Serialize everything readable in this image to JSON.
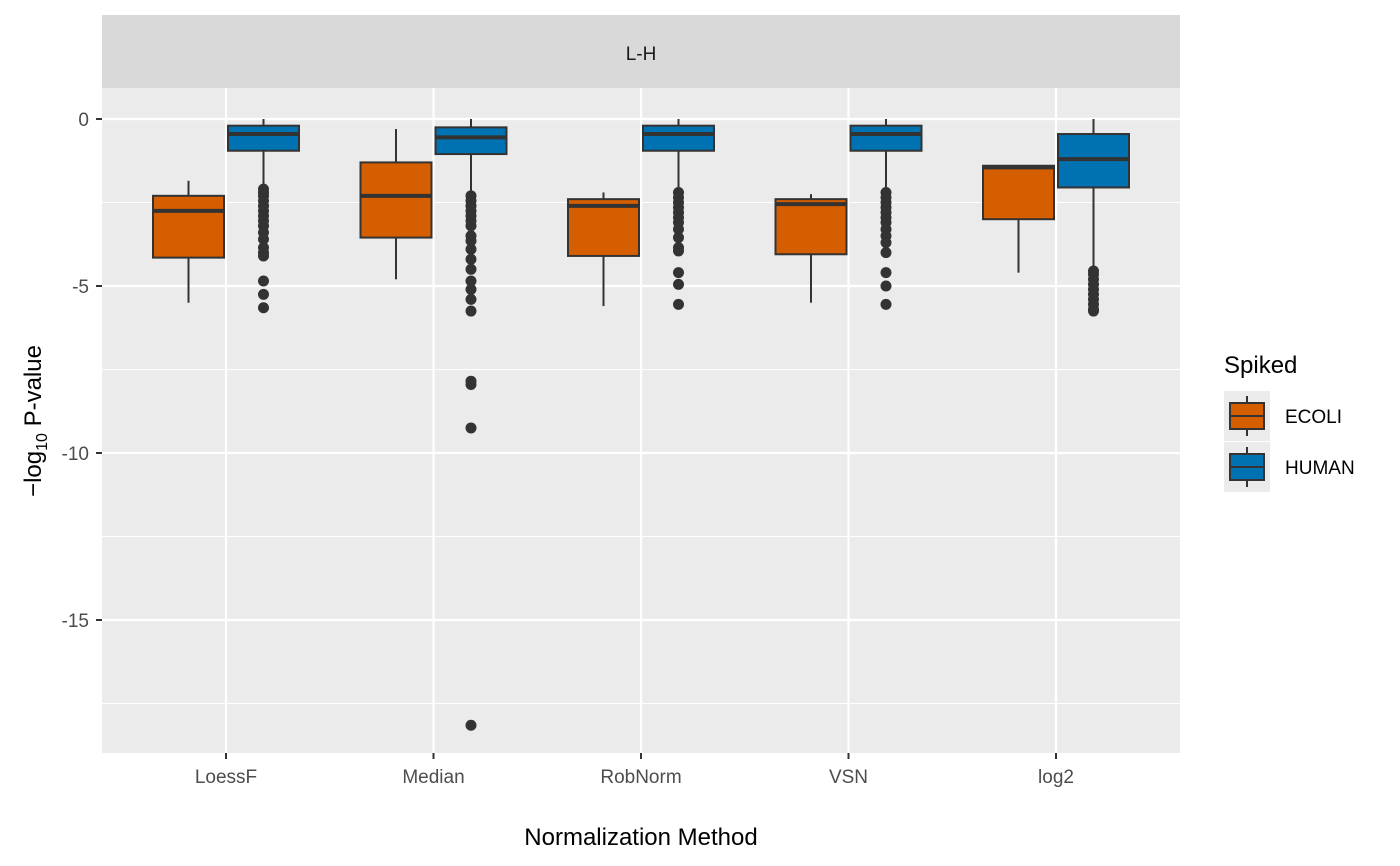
{
  "chart_data": {
    "type": "boxplot",
    "facet_label": "L-H",
    "xlabel": "Normalization Method",
    "ylabel_prefix": "−log",
    "ylabel_subscript": "10",
    "ylabel_suffix": " P-value",
    "ylim": [
      -19,
      0.9
    ],
    "yticks": [
      0,
      -5,
      -10,
      -15
    ],
    "ytick_labels": [
      "0",
      "-5",
      "-10",
      "-15"
    ],
    "grid": true,
    "categories": [
      "LoessF",
      "Median",
      "RobNorm",
      "VSN",
      "log2"
    ],
    "legend": {
      "title": "Spiked",
      "position": "right",
      "items": [
        {
          "label": "ECOLI",
          "color": "#D55E00"
        },
        {
          "label": "HUMAN",
          "color": "#0072B2"
        }
      ]
    },
    "series": [
      {
        "name": "ECOLI",
        "color": "#D55E00",
        "boxes": [
          {
            "category": "LoessF",
            "whisker_low": -5.5,
            "q1": -4.15,
            "median": -2.75,
            "q3": -2.3,
            "whisker_high": -1.85,
            "outliers": []
          },
          {
            "category": "Median",
            "whisker_low": -4.8,
            "q1": -3.55,
            "median": -2.3,
            "q3": -1.3,
            "whisker_high": -0.3,
            "outliers": []
          },
          {
            "category": "RobNorm",
            "whisker_low": -5.6,
            "q1": -4.1,
            "median": -2.6,
            "q3": -2.4,
            "whisker_high": -2.2,
            "outliers": []
          },
          {
            "category": "VSN",
            "whisker_low": -5.5,
            "q1": -4.05,
            "median": -2.55,
            "q3": -2.4,
            "whisker_high": -2.25,
            "outliers": []
          },
          {
            "category": "log2",
            "whisker_low": -4.6,
            "q1": -3.0,
            "median": -1.45,
            "q3": -1.4,
            "whisker_high": -1.4,
            "outliers": []
          }
        ]
      },
      {
        "name": "HUMAN",
        "color": "#0072B2",
        "boxes": [
          {
            "category": "LoessF",
            "whisker_low": -2.0,
            "q1": -0.95,
            "median": -0.45,
            "q3": -0.2,
            "whisker_high": 0.0,
            "outliers": [
              -2.1,
              -2.2,
              -2.3,
              -2.45,
              -2.6,
              -2.75,
              -2.9,
              -3.05,
              -3.2,
              -3.4,
              -3.6,
              -3.85,
              -4.0,
              -4.1,
              -4.85,
              -5.25,
              -5.65
            ]
          },
          {
            "category": "Median",
            "whisker_low": -2.2,
            "q1": -1.05,
            "median": -0.55,
            "q3": -0.25,
            "whisker_high": 0.0,
            "outliers": [
              -2.3,
              -2.45,
              -2.6,
              -2.75,
              -2.9,
              -3.05,
              -3.2,
              -3.5,
              -3.65,
              -3.9,
              -4.2,
              -4.5,
              -4.85,
              -5.1,
              -5.4,
              -5.75,
              -7.85,
              -7.95,
              -9.25,
              -18.15
            ]
          },
          {
            "category": "RobNorm",
            "whisker_low": -2.1,
            "q1": -0.95,
            "median": -0.45,
            "q3": -0.2,
            "whisker_high": 0.0,
            "outliers": [
              -2.2,
              -2.35,
              -2.5,
              -2.65,
              -2.8,
              -2.95,
              -3.1,
              -3.3,
              -3.55,
              -3.85,
              -3.95,
              -4.6,
              -4.95,
              -5.55
            ]
          },
          {
            "category": "VSN",
            "whisker_low": -2.1,
            "q1": -0.95,
            "median": -0.45,
            "q3": -0.2,
            "whisker_high": 0.0,
            "outliers": [
              -2.2,
              -2.35,
              -2.5,
              -2.65,
              -2.8,
              -2.95,
              -3.1,
              -3.3,
              -3.5,
              -3.7,
              -4.0,
              -4.6,
              -5.0,
              -5.55
            ]
          },
          {
            "category": "log2",
            "whisker_low": -4.45,
            "q1": -2.05,
            "median": -1.2,
            "q3": -0.45,
            "whisker_high": 0.0,
            "outliers": [
              -4.55,
              -4.65,
              -4.8,
              -4.95,
              -5.1,
              -5.25,
              -5.4,
              -5.55,
              -5.7,
              -5.75
            ]
          }
        ]
      }
    ]
  }
}
